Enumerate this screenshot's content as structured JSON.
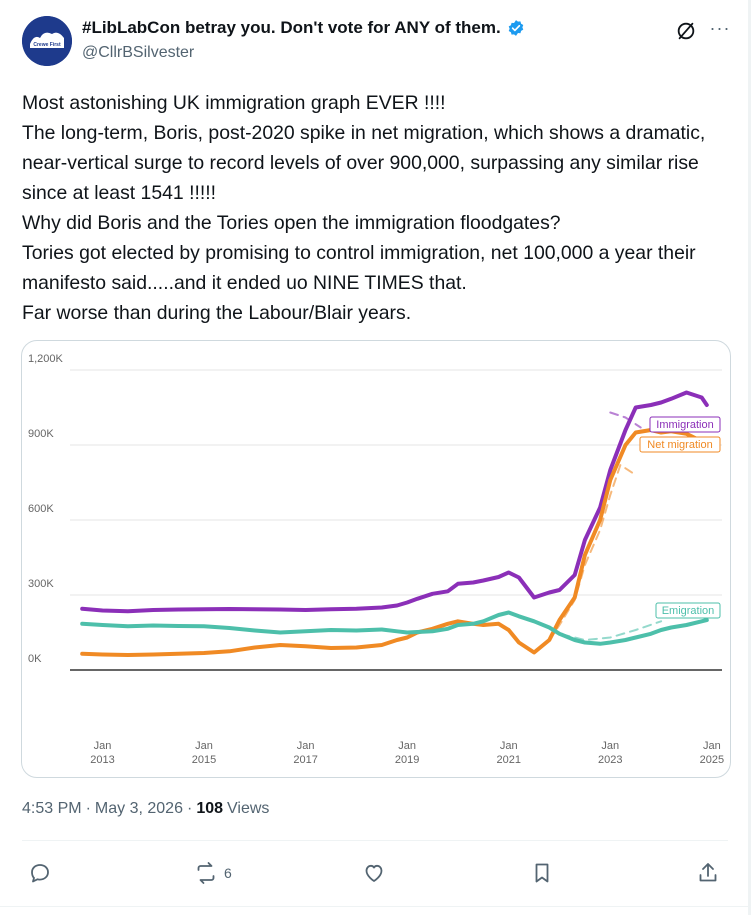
{
  "header": {
    "display_name": "#LibLabCon betray you. Don't vote for ANY of them.",
    "handle": "@CllrBSilvester",
    "avatar_text": "Crewe First",
    "more_label": "···"
  },
  "tweet": {
    "text": "Most astonishing UK immigration graph EVER !!!!\nThe long-term, Boris, post-2020 spike in net migration, which shows a dramatic, near-vertical surge to record levels of over 900,000, surpassing any similar rise since at least 1541 !!!!!\nWhy did Boris and the Tories open the immigration floodgates?\nTories got elected by promising to control immigration, net 100,000 a year their manifesto said.....and it ended uo NINE TIMES that.\nFar worse than during the Labour/Blair years."
  },
  "meta": {
    "time": "4:53 PM",
    "sep1": "·",
    "date": "May 3, 2026",
    "sep2": "·",
    "views_count": "108",
    "views_label": "Views"
  },
  "actions": {
    "reposts_count": "6"
  },
  "colors": {
    "immigration": "#8b2fb8",
    "net_migration": "#f08a24",
    "emigration": "#4dbfaa",
    "verified": "#1d9bf0"
  },
  "chart_data": {
    "type": "line",
    "ylim": [
      -200000,
      1200000
    ],
    "y_ticks": [
      0,
      300000,
      600000,
      900000,
      1200000
    ],
    "y_tick_labels": [
      "0K",
      "300K",
      "600K",
      "900K",
      "1,200K"
    ],
    "x_ticks": [
      2013,
      2015,
      2017,
      2019,
      2021,
      2023,
      2025
    ],
    "x_tick_labels": [
      [
        "Jan",
        "2013"
      ],
      [
        "Jan",
        "2015"
      ],
      [
        "Jan",
        "2017"
      ],
      [
        "Jan",
        "2019"
      ],
      [
        "Jan",
        "2021"
      ],
      [
        "Jan",
        "2023"
      ],
      [
        "Jan",
        "2025"
      ]
    ],
    "xlim": [
      2012.4,
      2025.2
    ],
    "series": [
      {
        "name": "Immigration",
        "color": "#8b2fb8",
        "x": [
          2012.6,
          2013.0,
          2013.5,
          2014.0,
          2014.5,
          2015.0,
          2015.5,
          2016.0,
          2016.5,
          2017.0,
          2017.5,
          2018.0,
          2018.5,
          2018.8,
          2019.0,
          2019.2,
          2019.5,
          2019.8,
          2020.0,
          2020.3,
          2020.5,
          2020.8,
          2021.0,
          2021.2,
          2021.5,
          2021.8,
          2022.0,
          2022.3,
          2022.5,
          2022.8,
          2023.0,
          2023.3,
          2023.5,
          2023.8,
          2024.0,
          2024.2,
          2024.5,
          2024.8,
          2024.9
        ],
        "values": [
          245000,
          238000,
          235000,
          240000,
          242000,
          243000,
          244000,
          243000,
          242000,
          240000,
          243000,
          245000,
          250000,
          258000,
          270000,
          285000,
          305000,
          315000,
          345000,
          350000,
          358000,
          372000,
          390000,
          370000,
          290000,
          310000,
          320000,
          380000,
          520000,
          650000,
          800000,
          960000,
          1050000,
          1060000,
          1070000,
          1085000,
          1110000,
          1090000,
          1060000
        ]
      },
      {
        "name": "Net migration",
        "color": "#f08a24",
        "x": [
          2012.6,
          2013.0,
          2013.5,
          2014.0,
          2014.5,
          2015.0,
          2015.5,
          2016.0,
          2016.5,
          2017.0,
          2017.5,
          2018.0,
          2018.5,
          2018.8,
          2019.0,
          2019.2,
          2019.5,
          2019.8,
          2020.0,
          2020.3,
          2020.5,
          2020.8,
          2021.0,
          2021.2,
          2021.5,
          2021.8,
          2022.0,
          2022.3,
          2022.5,
          2022.8,
          2023.0,
          2023.3,
          2023.5,
          2023.8,
          2024.0,
          2024.2,
          2024.5,
          2024.8,
          2024.9
        ],
        "values": [
          65000,
          62000,
          60000,
          62000,
          65000,
          68000,
          75000,
          90000,
          100000,
          95000,
          88000,
          90000,
          100000,
          120000,
          130000,
          150000,
          165000,
          185000,
          195000,
          185000,
          180000,
          185000,
          160000,
          110000,
          70000,
          120000,
          200000,
          290000,
          460000,
          600000,
          760000,
          900000,
          950000,
          960000,
          950000,
          955000,
          945000,
          915000,
          880000
        ]
      },
      {
        "name": "Emigration",
        "color": "#4dbfaa",
        "x": [
          2012.6,
          2013.0,
          2013.5,
          2014.0,
          2014.5,
          2015.0,
          2015.5,
          2016.0,
          2016.5,
          2017.0,
          2017.5,
          2018.0,
          2018.5,
          2018.8,
          2019.0,
          2019.2,
          2019.5,
          2019.8,
          2020.0,
          2020.3,
          2020.5,
          2020.8,
          2021.0,
          2021.2,
          2021.5,
          2021.8,
          2022.0,
          2022.3,
          2022.5,
          2022.8,
          2023.0,
          2023.3,
          2023.5,
          2023.8,
          2024.0,
          2024.2,
          2024.5,
          2024.8,
          2024.9
        ],
        "values": [
          185000,
          180000,
          175000,
          178000,
          176000,
          175000,
          168000,
          158000,
          150000,
          155000,
          160000,
          158000,
          162000,
          155000,
          150000,
          152000,
          155000,
          165000,
          180000,
          185000,
          195000,
          220000,
          230000,
          215000,
          195000,
          170000,
          145000,
          120000,
          110000,
          105000,
          110000,
          120000,
          130000,
          145000,
          160000,
          170000,
          180000,
          195000,
          200000
        ]
      },
      {
        "name": "Immigration (dashed)",
        "color": "#8b2fb8",
        "dashed": true,
        "x": [
          2023.0,
          2023.3,
          2023.6
        ],
        "values": [
          1030000,
          1010000,
          970000
        ]
      },
      {
        "name": "Net migration (dashed)",
        "color": "#f08a24",
        "dashed": true,
        "x": [
          2021.8,
          2022.0,
          2022.3,
          2022.5,
          2022.8,
          2023.0,
          2023.2,
          2023.5
        ],
        "values": [
          120000,
          180000,
          280000,
          420000,
          560000,
          700000,
          820000,
          780000
        ]
      },
      {
        "name": "Emigration (dashed)",
        "color": "#4dbfaa",
        "dashed": true,
        "x": [
          2021.8,
          2022.1,
          2022.5,
          2023.0,
          2023.5,
          2024.0
        ],
        "values": [
          170000,
          140000,
          120000,
          130000,
          160000,
          195000
        ]
      }
    ],
    "labels": [
      {
        "series": "Immigration",
        "text": "Immigration"
      },
      {
        "series": "Net migration",
        "text": "Net migration"
      },
      {
        "series": "Emigration",
        "text": "Emigration"
      }
    ]
  }
}
